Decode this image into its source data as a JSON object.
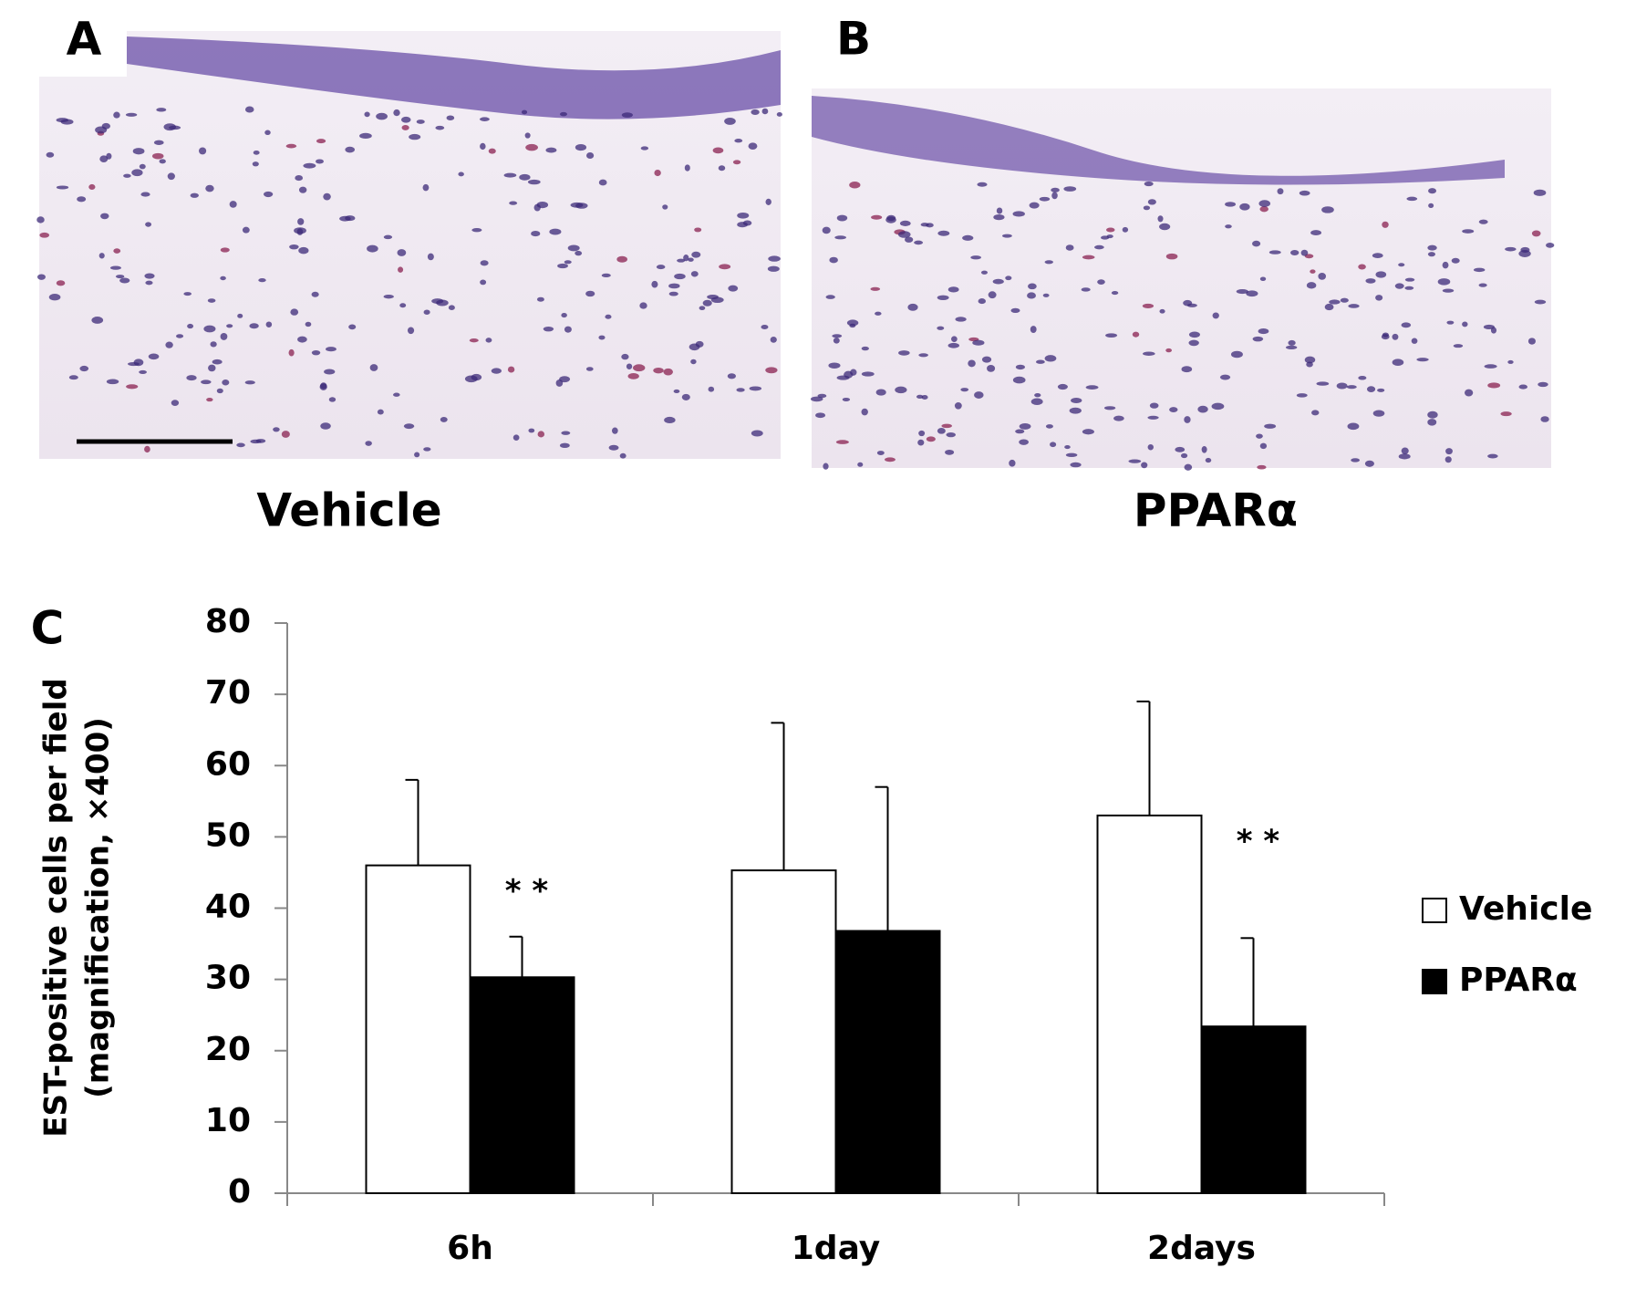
{
  "panel_labels": [
    "A",
    "B",
    "C"
  ],
  "captions": [
    "Vehicle",
    "PPARα"
  ],
  "chart_data": {
    "type": "bar",
    "ylabel": [
      "EST-positive cells per field",
      "(magnification, ×400)"
    ],
    "categories": [
      "6h",
      "1day",
      "2days"
    ],
    "series": [
      {
        "name": "Vehicle",
        "color": "#ffffff",
        "values": [
          46,
          45.3,
          53
        ],
        "errors": [
          12,
          20.7,
          16
        ]
      },
      {
        "name": "PPARα",
        "color": "#000000",
        "values": [
          30.3,
          36.8,
          23.4
        ],
        "errors": [
          5.7,
          20.2,
          12.4
        ]
      }
    ],
    "significance": [
      "* *",
      null,
      "* *"
    ],
    "ylim": [
      0,
      80
    ],
    "yticks": [
      0,
      10,
      20,
      30,
      40,
      50,
      60,
      70,
      80
    ],
    "legend": "right"
  }
}
